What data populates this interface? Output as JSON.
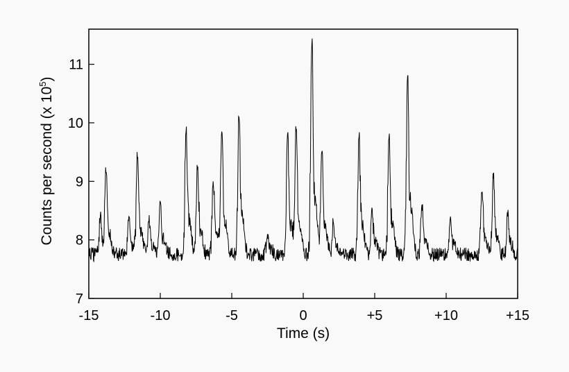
{
  "chart_data": {
    "type": "line",
    "title": "",
    "xlabel": "Time (s)",
    "ylabel_main": "Counts per second  (x 10",
    "ylabel_exp": "5",
    "ylabel_close": ")",
    "xlim": [
      -15,
      15
    ],
    "ylim": [
      7,
      11.6
    ],
    "xticks": [
      {
        "value": -15,
        "label": "-15"
      },
      {
        "value": -10,
        "label": "-10"
      },
      {
        "value": -5,
        "label": "-5"
      },
      {
        "value": 0,
        "label": "0"
      },
      {
        "value": 5,
        "label": "+5"
      },
      {
        "value": 10,
        "label": "+10"
      },
      {
        "value": 15,
        "label": "+15"
      }
    ],
    "yticks": [
      {
        "value": 7,
        "label": "7"
      },
      {
        "value": 8,
        "label": "8"
      },
      {
        "value": 9,
        "label": "9"
      },
      {
        "value": 10,
        "label": "10"
      },
      {
        "value": 11,
        "label": "11"
      }
    ],
    "grid": false,
    "line_color": "#000000",
    "baseline": 7.75,
    "noise_amplitude": 0.12,
    "peaks": [
      {
        "x": -14.2,
        "y": 8.4
      },
      {
        "x": -13.8,
        "y": 9.15
      },
      {
        "x": -12.2,
        "y": 8.4
      },
      {
        "x": -11.6,
        "y": 9.4
      },
      {
        "x": -10.8,
        "y": 8.3
      },
      {
        "x": -10.0,
        "y": 8.65
      },
      {
        "x": -8.2,
        "y": 9.85
      },
      {
        "x": -7.4,
        "y": 9.2
      },
      {
        "x": -6.3,
        "y": 9.0
      },
      {
        "x": -5.7,
        "y": 9.85
      },
      {
        "x": -4.5,
        "y": 10.1
      },
      {
        "x": -2.5,
        "y": 8.1
      },
      {
        "x": -1.1,
        "y": 9.8
      },
      {
        "x": -0.5,
        "y": 9.85
      },
      {
        "x": 0.6,
        "y": 11.35
      },
      {
        "x": 1.3,
        "y": 9.5
      },
      {
        "x": 2.1,
        "y": 8.3
      },
      {
        "x": 3.9,
        "y": 9.75
      },
      {
        "x": 4.8,
        "y": 8.55
      },
      {
        "x": 6.0,
        "y": 9.75
      },
      {
        "x": 7.3,
        "y": 10.8
      },
      {
        "x": 8.3,
        "y": 8.6
      },
      {
        "x": 10.3,
        "y": 8.4
      },
      {
        "x": 12.5,
        "y": 8.8
      },
      {
        "x": 13.3,
        "y": 9.05
      },
      {
        "x": 14.3,
        "y": 8.4
      }
    ]
  }
}
